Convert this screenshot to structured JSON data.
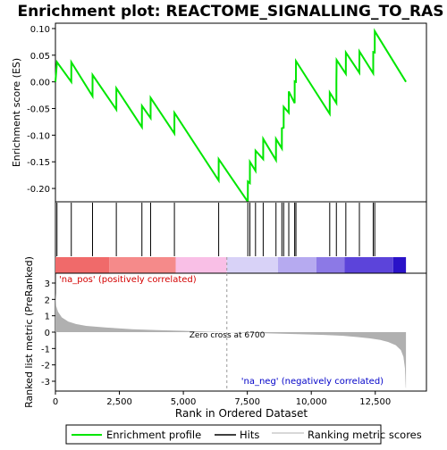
{
  "chart_data": {
    "type": "line",
    "title": "Enrichment plot: REACTOME_SIGNALLING_TO_RAS",
    "xlabel": "Rank in Ordered Dataset",
    "ylabel_top": "Enrichment score (ES)",
    "ylabel_bottom": "Ranked list metric (PreRanked)",
    "x_range": [
      0,
      14500
    ],
    "es_ylim": [
      -0.225,
      0.11
    ],
    "metric_ylim": [
      -3.6,
      3.6
    ],
    "x_ticks": [
      0,
      2500,
      5000,
      7500,
      10000,
      12500
    ],
    "x_tick_labels": [
      "0",
      "2,500",
      "5,000",
      "7,500",
      "10,000",
      "12,500"
    ],
    "es_ticks": [
      0.1,
      0.05,
      0.0,
      -0.05,
      -0.1,
      -0.15,
      -0.2
    ],
    "es_tick_labels": [
      "0.10",
      "0.05",
      "0.00",
      "-0.05",
      "-0.10",
      "-0.15",
      "-0.20"
    ],
    "metric_ticks": [
      3,
      2,
      1,
      0,
      -1,
      -2,
      -3
    ],
    "metric_tick_labels": [
      "3",
      "2",
      "1",
      "0",
      "-1",
      "-2",
      "-3"
    ],
    "hits": [
      60,
      620,
      1450,
      2380,
      3380,
      3720,
      4650,
      6380,
      7520,
      7600,
      7820,
      8120,
      8620,
      8850,
      8920,
      9120,
      9350,
      9400,
      10720,
      10980,
      11350,
      11880,
      12420,
      12480
    ],
    "es_profile": [
      [
        0,
        0.0
      ],
      [
        60,
        0.037
      ],
      [
        620,
        0.0
      ],
      [
        621,
        0.037
      ],
      [
        1450,
        -0.027
      ],
      [
        1451,
        0.013
      ],
      [
        2380,
        -0.052
      ],
      [
        2381,
        -0.012
      ],
      [
        3380,
        -0.085
      ],
      [
        3381,
        -0.045
      ],
      [
        3720,
        -0.068
      ],
      [
        3721,
        -0.03
      ],
      [
        4650,
        -0.097
      ],
      [
        4651,
        -0.058
      ],
      [
        6380,
        -0.185
      ],
      [
        6381,
        -0.145
      ],
      [
        7520,
        -0.225
      ],
      [
        7521,
        -0.187
      ],
      [
        7600,
        -0.19
      ],
      [
        7601,
        -0.15
      ],
      [
        7820,
        -0.167
      ],
      [
        7821,
        -0.129
      ],
      [
        8120,
        -0.145
      ],
      [
        8121,
        -0.107
      ],
      [
        8620,
        -0.147
      ],
      [
        8621,
        -0.107
      ],
      [
        8850,
        -0.125
      ],
      [
        8851,
        -0.087
      ],
      [
        8920,
        -0.086
      ],
      [
        8921,
        -0.047
      ],
      [
        9120,
        -0.058
      ],
      [
        9121,
        -0.018
      ],
      [
        9350,
        -0.04
      ],
      [
        9351,
        0.001
      ],
      [
        9400,
        0.0
      ],
      [
        9401,
        0.039
      ],
      [
        10720,
        -0.06
      ],
      [
        10721,
        -0.02
      ],
      [
        10980,
        -0.04
      ],
      [
        10981,
        0.0
      ],
      [
        10990,
        0.041
      ],
      [
        11350,
        0.015
      ],
      [
        11351,
        0.055
      ],
      [
        11880,
        0.017
      ],
      [
        11881,
        0.057
      ],
      [
        12420,
        0.016
      ],
      [
        12421,
        0.056
      ],
      [
        12480,
        0.055
      ],
      [
        12481,
        0.095
      ],
      [
        13700,
        0.0
      ]
    ],
    "metric_profile": [
      [
        0,
        2.4
      ],
      [
        30,
        1.6
      ],
      [
        100,
        1.25
      ],
      [
        250,
        0.9
      ],
      [
        500,
        0.65
      ],
      [
        800,
        0.5
      ],
      [
        1200,
        0.38
      ],
      [
        2000,
        0.28
      ],
      [
        3000,
        0.18
      ],
      [
        4000,
        0.12
      ],
      [
        5000,
        0.08
      ],
      [
        6000,
        0.03
      ],
      [
        6700,
        0.0
      ],
      [
        7500,
        -0.04
      ],
      [
        8500,
        -0.08
      ],
      [
        9500,
        -0.12
      ],
      [
        10500,
        -0.17
      ],
      [
        11200,
        -0.22
      ],
      [
        11800,
        -0.3
      ],
      [
        12300,
        -0.38
      ],
      [
        12700,
        -0.48
      ],
      [
        13000,
        -0.6
      ],
      [
        13300,
        -0.8
      ],
      [
        13500,
        -1.1
      ],
      [
        13600,
        -1.5
      ],
      [
        13660,
        -2.2
      ],
      [
        13690,
        -3.4
      ],
      [
        13700,
        -3.4
      ]
    ],
    "zero_cross_rank": 6700,
    "zero_cross_label": "Zero cross at 6700",
    "pos_label": "'na_pos' (positively correlated)",
    "neg_label": "'na_neg' (negatively correlated)",
    "band_segments": [
      {
        "from": 0,
        "to": 2100,
        "color": "#f06a6a"
      },
      {
        "from": 2100,
        "to": 4700,
        "color": "#f58a8a"
      },
      {
        "from": 4700,
        "to": 6700,
        "color": "#f9bfe6"
      },
      {
        "from": 6700,
        "to": 8700,
        "color": "#d8d2f7"
      },
      {
        "from": 8700,
        "to": 10200,
        "color": "#b6aaf0"
      },
      {
        "from": 10200,
        "to": 11300,
        "color": "#8c79e6"
      },
      {
        "from": 11300,
        "to": 13200,
        "color": "#5c44da"
      },
      {
        "from": 13200,
        "to": 13700,
        "color": "#2a12c8"
      }
    ],
    "colors": {
      "es_line": "#00e600",
      "hits": "#000000",
      "metric_fill": "#b0b0b0",
      "pos_text": "#d40000",
      "neg_text": "#0000c8"
    },
    "legend": {
      "items": [
        {
          "label": "Enrichment profile",
          "kind": "green-line"
        },
        {
          "label": "Hits",
          "kind": "black-line"
        },
        {
          "label": "Ranking metric scores",
          "kind": "gray-line"
        }
      ]
    }
  }
}
